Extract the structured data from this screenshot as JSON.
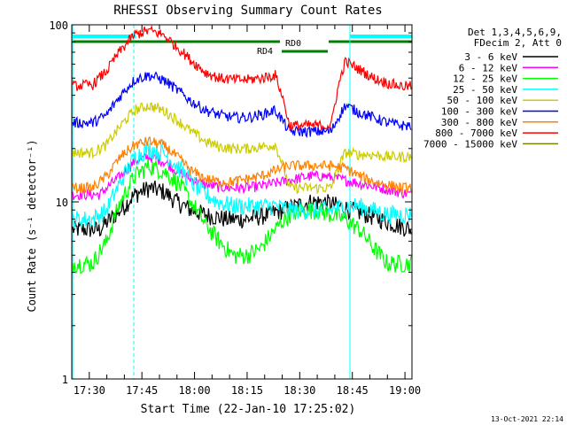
{
  "chart_data": {
    "type": "line",
    "title": "RHESSI Observing Summary Count Rates",
    "xlabel": "Start Time (22-Jan-10 17:25:02)",
    "ylabel": "Count Rate (s⁻¹ detector⁻¹)",
    "yscale": "log",
    "ylim": [
      1,
      100
    ],
    "xlim_minutes": [
      0,
      97
    ],
    "x_ticks": [
      {
        "label": "17:30",
        "minute": 5
      },
      {
        "label": "17:45",
        "minute": 20
      },
      {
        "label": "18:00",
        "minute": 35
      },
      {
        "label": "18:15",
        "minute": 50
      },
      {
        "label": "18:30",
        "minute": 65
      },
      {
        "label": "18:45",
        "minute": 80
      },
      {
        "label": "19:00",
        "minute": 95
      }
    ],
    "y_ticks": [
      {
        "label": "1",
        "value": 1
      },
      {
        "label": "10",
        "value": 10
      },
      {
        "label": "100",
        "value": 100
      }
    ],
    "legend_header": [
      "Det 1,3,4,5,6,9,",
      "FDecim 2, Att 0"
    ],
    "legend_position": "right",
    "series": [
      {
        "name": "3 - 6 keV",
        "color": "#000000",
        "x": [
          0,
          8,
          14,
          18,
          22,
          26,
          30,
          34,
          38,
          44,
          50,
          56,
          60,
          64,
          68,
          72,
          76,
          80,
          84,
          88,
          92,
          97
        ],
        "y": [
          7,
          7,
          9,
          11,
          12,
          11.5,
          10,
          9,
          8.5,
          8,
          8,
          8.5,
          9,
          9.5,
          10,
          10,
          9.5,
          9,
          8.5,
          8,
          7.5,
          7
        ]
      },
      {
        "name": "6 - 12 keV",
        "color": "#ff00ff",
        "x": [
          0,
          8,
          14,
          18,
          22,
          26,
          30,
          34,
          38,
          44,
          50,
          56,
          60,
          64,
          68,
          72,
          76,
          80,
          84,
          88,
          92,
          97
        ],
        "y": [
          11,
          11,
          14,
          17,
          18,
          17,
          15,
          13.5,
          12.5,
          12,
          12,
          12.5,
          13,
          13.5,
          14,
          14,
          13.5,
          13,
          12.5,
          12,
          11.5,
          11
        ]
      },
      {
        "name": "12 - 25 keV",
        "color": "#00ff00",
        "x": [
          0,
          6,
          10,
          14,
          18,
          22,
          26,
          30,
          34,
          38,
          42,
          46,
          50,
          54,
          58,
          62,
          66,
          70,
          74,
          78,
          82,
          86,
          90,
          94,
          97
        ],
        "y": [
          4.5,
          4.5,
          6,
          10,
          14,
          16,
          15,
          13,
          10,
          7.5,
          6,
          5,
          5,
          5.5,
          7,
          8.5,
          9,
          9,
          8.5,
          8,
          7,
          5.5,
          4.5,
          4.5,
          4.5
        ]
      },
      {
        "name": "25 - 50 keV",
        "color": "#00ffff",
        "x": [
          0,
          6,
          10,
          14,
          18,
          22,
          26,
          30,
          34,
          38,
          42,
          46,
          50,
          54,
          58,
          62,
          66,
          70,
          74,
          78,
          82,
          86,
          90,
          94,
          97
        ],
        "y": [
          8,
          8,
          9,
          13,
          18,
          20,
          19,
          16,
          13,
          11,
          10,
          9.5,
          9.5,
          9.5,
          9.5,
          9,
          9,
          9,
          9,
          9.5,
          9.5,
          9,
          8.5,
          8.5,
          8.5
        ]
      },
      {
        "name": "50 - 100 keV",
        "color": "#cccc00",
        "x": [
          0,
          6,
          10,
          14,
          18,
          22,
          26,
          30,
          34,
          38,
          42,
          46,
          50,
          54,
          58,
          62,
          66,
          70,
          74,
          78,
          82,
          86,
          90,
          94,
          97
        ],
        "y": [
          19,
          19,
          21,
          27,
          33,
          35,
          33,
          29,
          25,
          22,
          20.5,
          20,
          20,
          20.5,
          21,
          12,
          12,
          12,
          12,
          19,
          18.5,
          18.5,
          18,
          18,
          18
        ]
      },
      {
        "name": "100 - 300 keV",
        "color": "#0000ff",
        "x": [
          0,
          6,
          10,
          14,
          18,
          22,
          26,
          30,
          34,
          38,
          42,
          46,
          50,
          54,
          58,
          62,
          66,
          70,
          74,
          78,
          82,
          86,
          90,
          94,
          97
        ],
        "y": [
          28,
          28,
          31,
          40,
          49,
          52,
          49,
          43,
          37,
          33,
          31,
          30,
          30,
          31,
          33,
          25,
          25,
          25,
          25,
          35,
          32,
          30,
          28,
          27,
          27
        ]
      },
      {
        "name": "300 - 800 keV",
        "color": "#ff8000",
        "x": [
          0,
          6,
          10,
          14,
          18,
          22,
          26,
          30,
          34,
          38,
          42,
          46,
          50,
          54,
          58,
          62,
          66,
          70,
          74,
          78,
          82,
          86,
          90,
          94,
          97
        ],
        "y": [
          12,
          12,
          14,
          18,
          21,
          22,
          21,
          18,
          15,
          13.5,
          13,
          13,
          13.5,
          14,
          15,
          16,
          16,
          16,
          16,
          15.5,
          14,
          13,
          12.5,
          12,
          12
        ]
      },
      {
        "name": "800 - 7000 keV",
        "color": "#ff0000",
        "x": [
          0,
          6,
          10,
          14,
          18,
          22,
          26,
          30,
          34,
          38,
          42,
          46,
          50,
          54,
          58,
          62,
          66,
          70,
          74,
          78,
          82,
          86,
          90,
          94,
          97
        ],
        "y": [
          45,
          46,
          55,
          72,
          88,
          93,
          88,
          75,
          63,
          54,
          50,
          49,
          49,
          50,
          52,
          27,
          27,
          27,
          27,
          62,
          56,
          50,
          47,
          45,
          45
        ]
      },
      {
        "name": "7000 - 15000 keV",
        "color": "#808000",
        "x": [],
        "y": []
      }
    ],
    "annotations": [
      {
        "text": "RD0",
        "color": "#008000"
      },
      {
        "text": "RD4",
        "color": "#008000"
      }
    ]
  },
  "footer_date": "13-Oct-2021 22:14"
}
